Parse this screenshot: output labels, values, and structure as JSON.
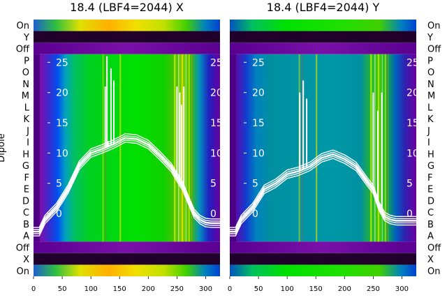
{
  "chart_data": [
    {
      "type": "heatmap",
      "title": "18.4 (LBF4=2044) X",
      "ylabel": "Dipole",
      "x_ticks": [
        0,
        50,
        100,
        150,
        200,
        250,
        300
      ],
      "xlim": [
        0,
        325
      ],
      "y_ticks": [
        0,
        5,
        10,
        15,
        20,
        25
      ],
      "ylim": [
        -3,
        27
      ],
      "row_labels": [
        "On",
        "Y",
        "Off",
        "P",
        "O",
        "N",
        "M",
        "L",
        "K",
        "J",
        "I",
        "H",
        "G",
        "F",
        "E",
        "D",
        "C",
        "B",
        "A",
        "Off",
        "X",
        "On"
      ],
      "series": [
        {
          "x": [
            0,
            10,
            20,
            30,
            40,
            60,
            80,
            100,
            120,
            140,
            160,
            180,
            200,
            220,
            240,
            250,
            260,
            270,
            280,
            290,
            300,
            310,
            325
          ],
          "y": [
            -3,
            -3,
            -1,
            0,
            1,
            4,
            8,
            10,
            10.7,
            11.5,
            12.5,
            12.3,
            11.4,
            9.6,
            7.6,
            6,
            4.5,
            2.2,
            0,
            -1,
            -1.5,
            -1.6,
            -1.6
          ]
        }
      ],
      "spikes": [
        {
          "x": 125,
          "y": 21
        },
        {
          "x": 128,
          "y": 26
        },
        {
          "x": 130,
          "y": 12
        },
        {
          "x": 135,
          "y": 24
        },
        {
          "x": 140,
          "y": 22
        },
        {
          "x": 250,
          "y": 21
        },
        {
          "x": 255,
          "y": 20
        },
        {
          "x": 258,
          "y": 18
        },
        {
          "x": 262,
          "y": 21
        }
      ]
    },
    {
      "type": "heatmap",
      "title": "18.4 (LBF4=2044) Y",
      "x_ticks": [
        0,
        50,
        100,
        150,
        200,
        250,
        300
      ],
      "xlim": [
        0,
        325
      ],
      "y_ticks": [
        0,
        5,
        10,
        15,
        20,
        25
      ],
      "ylim": [
        -3,
        27
      ],
      "row_labels": [
        "On",
        "Y",
        "Off",
        "P",
        "O",
        "N",
        "M",
        "L",
        "K",
        "J",
        "I",
        "H",
        "G",
        "F",
        "E",
        "D",
        "C",
        "B",
        "A",
        "Off",
        "X",
        "On"
      ],
      "series": [
        {
          "x": [
            0,
            10,
            20,
            30,
            40,
            60,
            80,
            100,
            120,
            140,
            160,
            180,
            200,
            220,
            240,
            250,
            260,
            270,
            280,
            290,
            300,
            310,
            325
          ],
          "y": [
            -3,
            -3,
            -1,
            0,
            1,
            4,
            5,
            6.5,
            7,
            7.8,
            9.2,
            9.8,
            9,
            7.8,
            5.2,
            4,
            1.2,
            -0.5,
            -1,
            -1.2,
            -1.2,
            -1.2,
            -1.2
          ]
        }
      ],
      "spikes": [
        {
          "x": 122,
          "y": 20
        },
        {
          "x": 128,
          "y": 22
        },
        {
          "x": 134,
          "y": 19
        },
        {
          "x": 250,
          "y": 20
        },
        {
          "x": 258,
          "y": 17
        },
        {
          "x": 265,
          "y": 20
        }
      ]
    }
  ]
}
